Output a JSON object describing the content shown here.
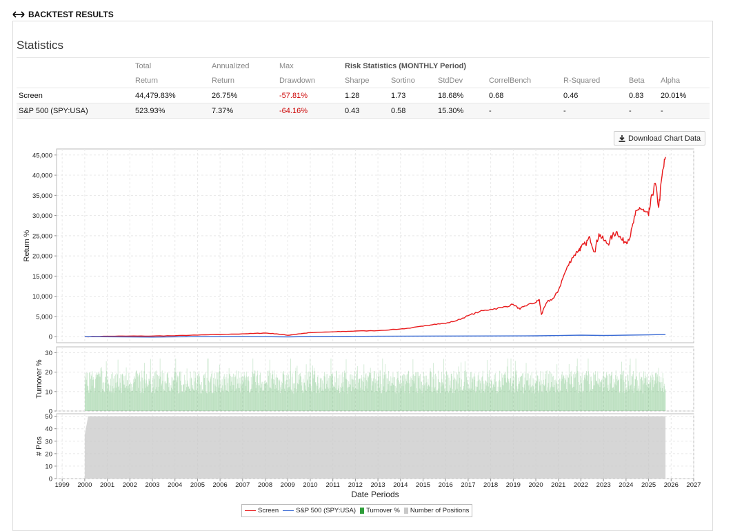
{
  "header": {
    "title": "BACKTEST RESULTS",
    "icon": "back-arrow-icon"
  },
  "statistics": {
    "title": "Statistics",
    "header_row1": [
      "Total",
      "Annualized",
      "Max",
      "Risk Statistics (MONTHLY Period)"
    ],
    "header_row2": [
      "Return",
      "Return",
      "Drawdown",
      "Sharpe",
      "Sortino",
      "StdDev",
      "CorrelBench",
      "R-Squared",
      "Beta",
      "Alpha"
    ],
    "rows": [
      {
        "name": "Screen",
        "total_return": "44,479.83%",
        "annualized_return": "26.75%",
        "max_drawdown": "-57.81%",
        "sharpe": "1.28",
        "sortino": "1.73",
        "stddev": "18.68%",
        "correlbench": "0.68",
        "r_squared": "0.46",
        "beta": "0.83",
        "alpha": "20.01%"
      },
      {
        "name": "S&P 500 (SPY:USA)",
        "total_return": "523.93%",
        "annualized_return": "7.37%",
        "max_drawdown": "-64.16%",
        "sharpe": "0.43",
        "sortino": "0.58",
        "stddev": "15.30%",
        "correlbench": "-",
        "r_squared": "-",
        "beta": "-",
        "alpha": "-"
      }
    ]
  },
  "download_button": {
    "label": "Download Chart Data",
    "icon": "download-icon"
  },
  "colors": {
    "screen": "#e8191b",
    "benchmark": "#3a6bd4",
    "turnover": "#2e9e3a",
    "positions": "#c8c8c8",
    "negative": "#cc0000"
  },
  "chart_data": {
    "type": "line",
    "xlabel": "Date Periods",
    "x_ticks": [
      "1999",
      "2000",
      "2001",
      "2002",
      "2003",
      "2004",
      "2005",
      "2006",
      "2007",
      "2008",
      "2009",
      "2010",
      "2011",
      "2012",
      "2013",
      "2014",
      "2015",
      "2016",
      "2017",
      "2018",
      "2019",
      "2020",
      "2021",
      "2022",
      "2023",
      "2024",
      "2025",
      "2026",
      "2027"
    ],
    "panels": [
      {
        "name": "returns",
        "ylabel": "Return %",
        "ylim": [
          -1500,
          46500
        ],
        "y_ticks": [
          "45,000",
          "40,000",
          "35,000",
          "30,000",
          "25,000",
          "20,000",
          "15,000",
          "10,000",
          "5,000",
          "0"
        ],
        "y_tick_values": [
          45000,
          40000,
          35000,
          30000,
          25000,
          20000,
          15000,
          10000,
          5000,
          0
        ],
        "series": [
          {
            "name": "Screen",
            "color": "#e8191b",
            "x": [
              2000.0,
              2001.0,
              2002.0,
              2003.0,
              2004.0,
              2005.0,
              2006.0,
              2007.0,
              2007.5,
              2008.0,
              2008.5,
              2009.0,
              2009.5,
              2010.0,
              2011.0,
              2011.5,
              2012.0,
              2013.0,
              2014.0,
              2014.5,
              2015.0,
              2015.5,
              2016.0,
              2016.5,
              2017.0,
              2017.5,
              2018.0,
              2018.5,
              2019.0,
              2019.3,
              2019.5,
              2020.0,
              2020.15,
              2020.25,
              2020.5,
              2020.8,
              2021.0,
              2021.3,
              2021.6,
              2021.9,
              2022.0,
              2022.2,
              2022.4,
              2022.6,
              2022.8,
              2023.0,
              2023.2,
              2023.4,
              2023.6,
              2023.8,
              2024.0,
              2024.2,
              2024.4,
              2024.6,
              2024.8,
              2025.0,
              2025.15,
              2025.3,
              2025.45,
              2025.6,
              2025.75
            ],
            "y": [
              0,
              100,
              150,
              150,
              250,
              400,
              550,
              700,
              800,
              900,
              700,
              350,
              700,
              1000,
              1200,
              1300,
              1400,
              1500,
              1900,
              2200,
              2600,
              3100,
              3300,
              4000,
              5200,
              6200,
              6800,
              7200,
              8000,
              6800,
              7600,
              8500,
              9200,
              5500,
              8600,
              9600,
              11500,
              16000,
              19500,
              21500,
              22000,
              23000,
              24500,
              21000,
              25500,
              24000,
              23000,
              25000,
              26000,
              24000,
              23500,
              25000,
              30000,
              32000,
              31000,
              30000,
              35000,
              38000,
              32000,
              40000,
              44500
            ]
          },
          {
            "name": "S&P 500 (SPY:USA)",
            "color": "#3a6bd4",
            "x": [
              2000,
              2002,
              2003,
              2004,
              2007,
              2009,
              2010,
              2013,
              2016,
              2018,
              2020,
              2021,
              2022,
              2023,
              2024,
              2025,
              2025.5,
              2025.75
            ],
            "y": [
              0,
              -60,
              -100,
              -30,
              50,
              -40,
              30,
              100,
              150,
              180,
              200,
              280,
              380,
              300,
              380,
              450,
              520,
              524
            ]
          }
        ]
      },
      {
        "name": "turnover",
        "ylabel": "Turnover %",
        "ylim": [
          0,
          33
        ],
        "y_ticks": [
          "30",
          "20",
          "10",
          "0"
        ],
        "y_tick_values": [
          30,
          20,
          10,
          0
        ],
        "series": [
          {
            "name": "Turnover %",
            "color": "#2e9e3a",
            "type": "bar",
            "x_range": [
              2000.0,
              2025.75
            ],
            "typical": 15,
            "range": [
              5,
              27
            ]
          }
        ]
      },
      {
        "name": "positions",
        "ylabel": "# Pos",
        "ylim": [
          0,
          52
        ],
        "y_ticks": [
          "50",
          "40",
          "30",
          "20",
          "10",
          "0"
        ],
        "y_tick_values": [
          50,
          40,
          30,
          20,
          10,
          0
        ],
        "series": [
          {
            "name": "Number of Positions",
            "color": "#c8c8c8",
            "type": "area",
            "x": [
              2000.0,
              2000.05,
              2000.15,
              2025.75
            ],
            "y": [
              35,
              40,
              50,
              50
            ]
          }
        ]
      }
    ],
    "legend": [
      "Screen",
      "S&P 500 (SPY:USA)",
      "Turnover %",
      "Number of Positions"
    ]
  }
}
